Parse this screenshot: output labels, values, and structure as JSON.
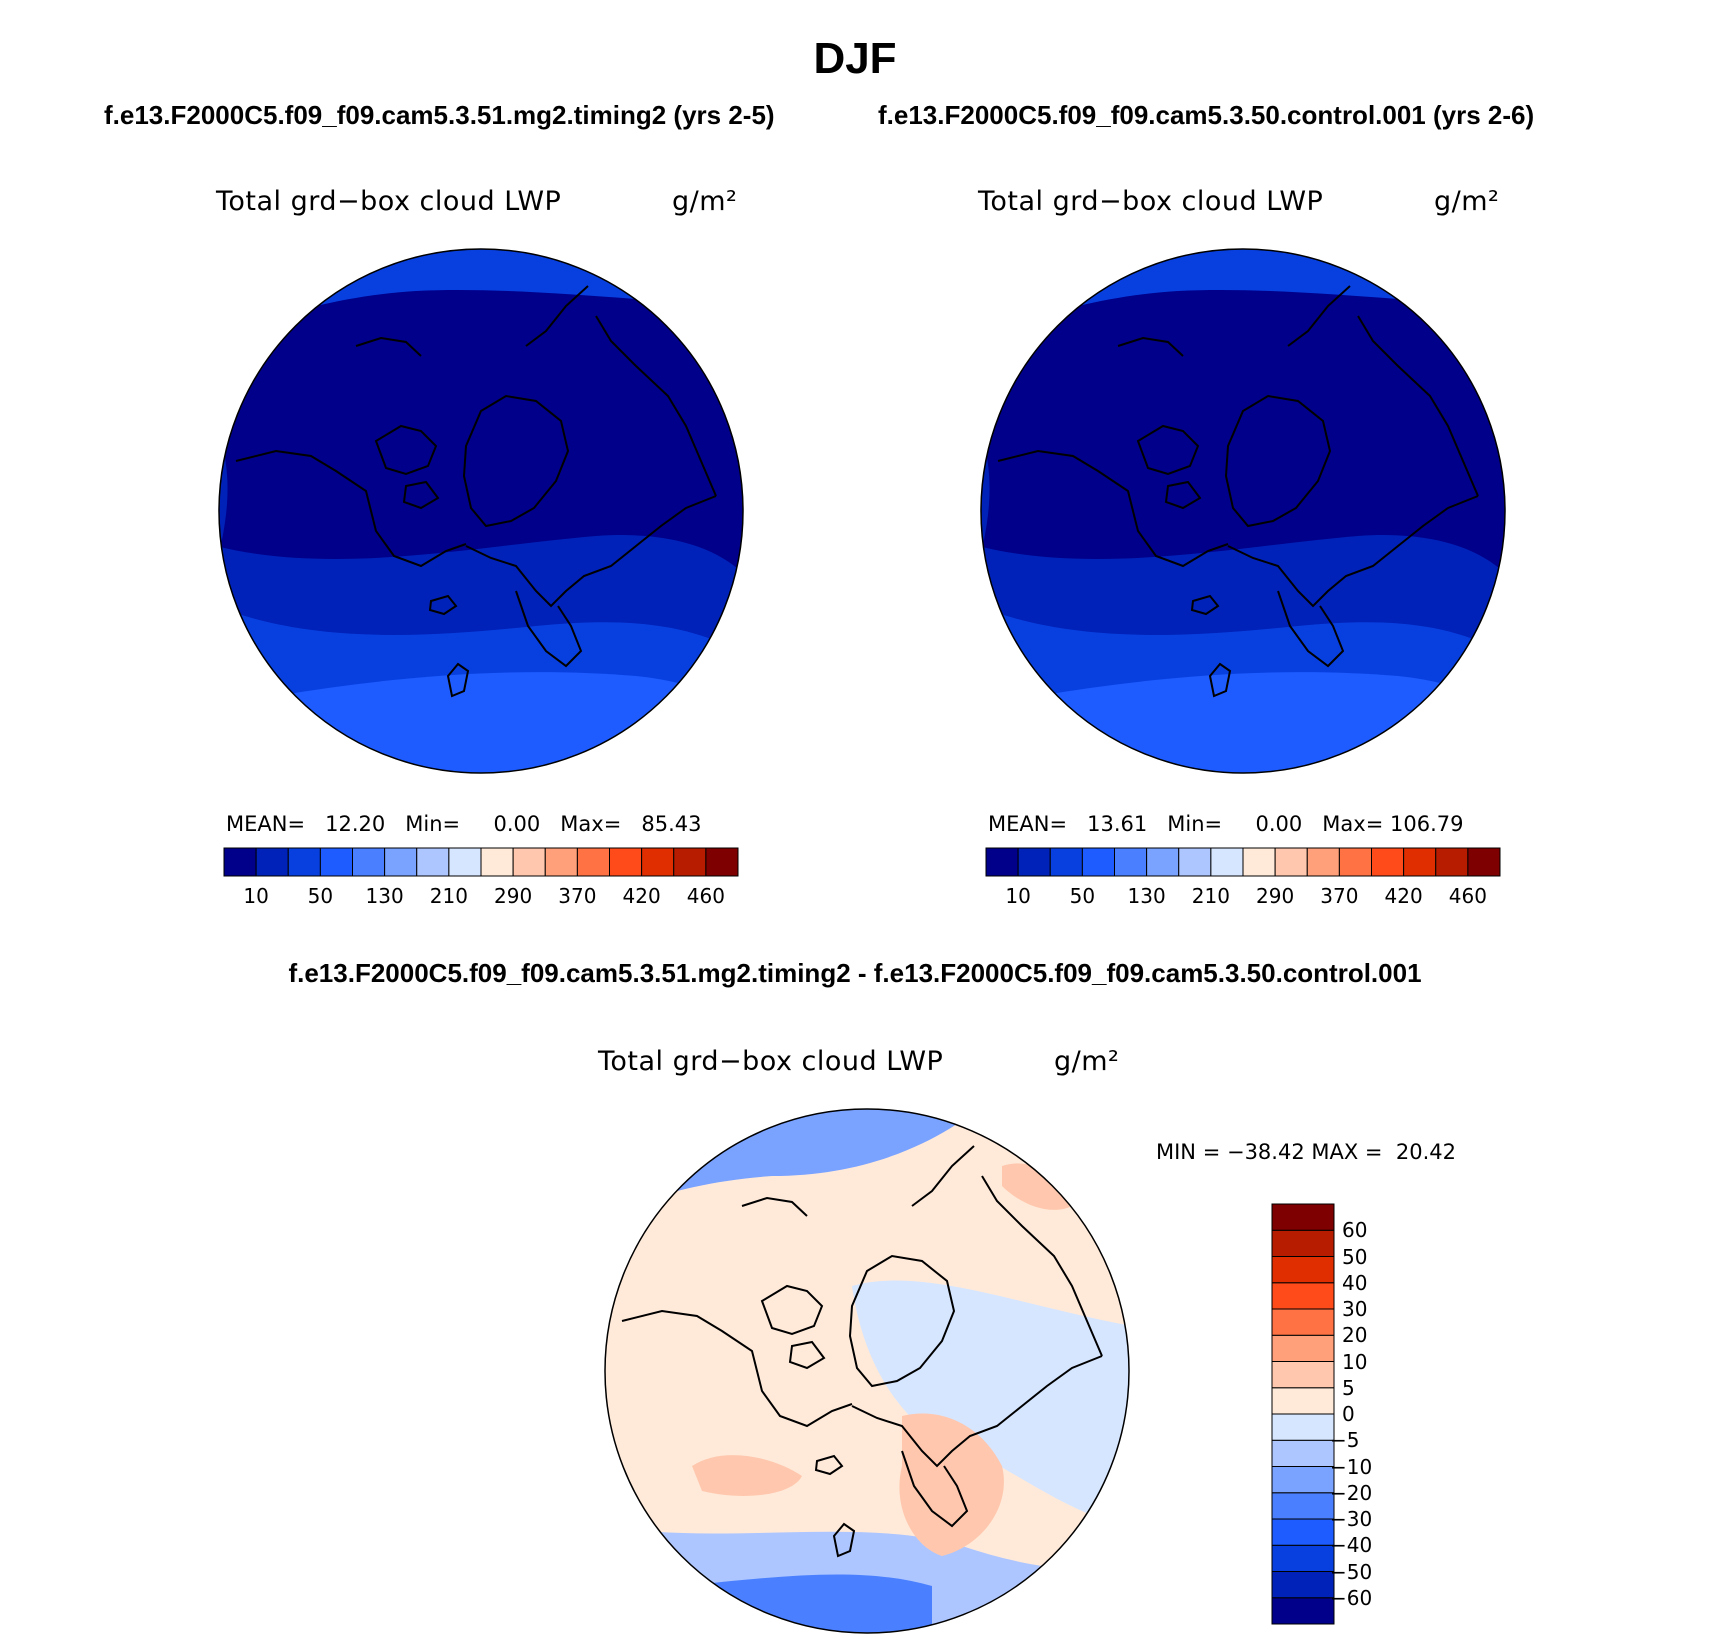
{
  "title": "DJF",
  "subtitle_left": "f.e13.F2000C5.f09_f09.cam5.3.51.mg2.timing2 (yrs 2-5)",
  "subtitle_right": "f.e13.F2000C5.f09_f09.cam5.3.50.control.001 (yrs 2-6)",
  "diff_title": "f.e13.F2000C5.f09_f09.cam5.3.51.mg2.timing2 - f.e13.F2000C5.f09_f09.cam5.3.50.control.001",
  "colors": {
    "abs_scale": [
      "#00008a",
      "#0022b8",
      "#0840e0",
      "#1e5cff",
      "#4a80ff",
      "#7aa2ff",
      "#aec6ff",
      "#d6e6ff",
      "#ffeada",
      "#ffc8ae",
      "#ffa07a",
      "#ff7244",
      "#ff4a1a",
      "#e02e00",
      "#b81c00",
      "#7e0000"
    ],
    "diff_scale": [
      "#00008a",
      "#0022b8",
      "#0840e0",
      "#1e5cff",
      "#4a80ff",
      "#7aa2ff",
      "#aec6ff",
      "#d6e6ff",
      "#ffeada",
      "#ffc8ae",
      "#ffa07a",
      "#ff7244",
      "#ff4a1a",
      "#e02e00",
      "#b81c00",
      "#7e0000"
    ],
    "coastline": "#000000"
  },
  "chart_data": [
    {
      "type": "heatmap",
      "map_projection": "north-polar-stereographic",
      "title": "Total grd−box cloud LWP",
      "units": "g/m²",
      "mean_label": "MEAN=",
      "mean": "12.20",
      "min_label": "Min=",
      "min": "0.00",
      "max_label": "Max=",
      "max": "85.43",
      "colorbar_ticks": [
        "10",
        "50",
        "130",
        "210",
        "290",
        "370",
        "420",
        "460"
      ],
      "colorbar_position": "bottom"
    },
    {
      "type": "heatmap",
      "map_projection": "north-polar-stereographic",
      "title": "Total grd−box cloud LWP",
      "units": "g/m²",
      "mean_label": "MEAN=",
      "mean": "13.61",
      "min_label": "Min=",
      "min": "0.00",
      "max_label": "Max=",
      "max": "106.79",
      "colorbar_ticks": [
        "10",
        "50",
        "130",
        "210",
        "290",
        "370",
        "420",
        "460"
      ],
      "colorbar_position": "bottom"
    },
    {
      "type": "heatmap",
      "map_projection": "north-polar-stereographic",
      "title": "Total grd−box cloud LWP",
      "units": "g/m²",
      "minmax_text": "MIN = −38.42 MAX =  20.42",
      "colorbar_ticks": [
        "60",
        "50",
        "40",
        "30",
        "20",
        "10",
        "5",
        "0",
        "−5",
        "−10",
        "−20",
        "−30",
        "−40",
        "−50",
        "−60"
      ],
      "colorbar_position": "right"
    }
  ]
}
